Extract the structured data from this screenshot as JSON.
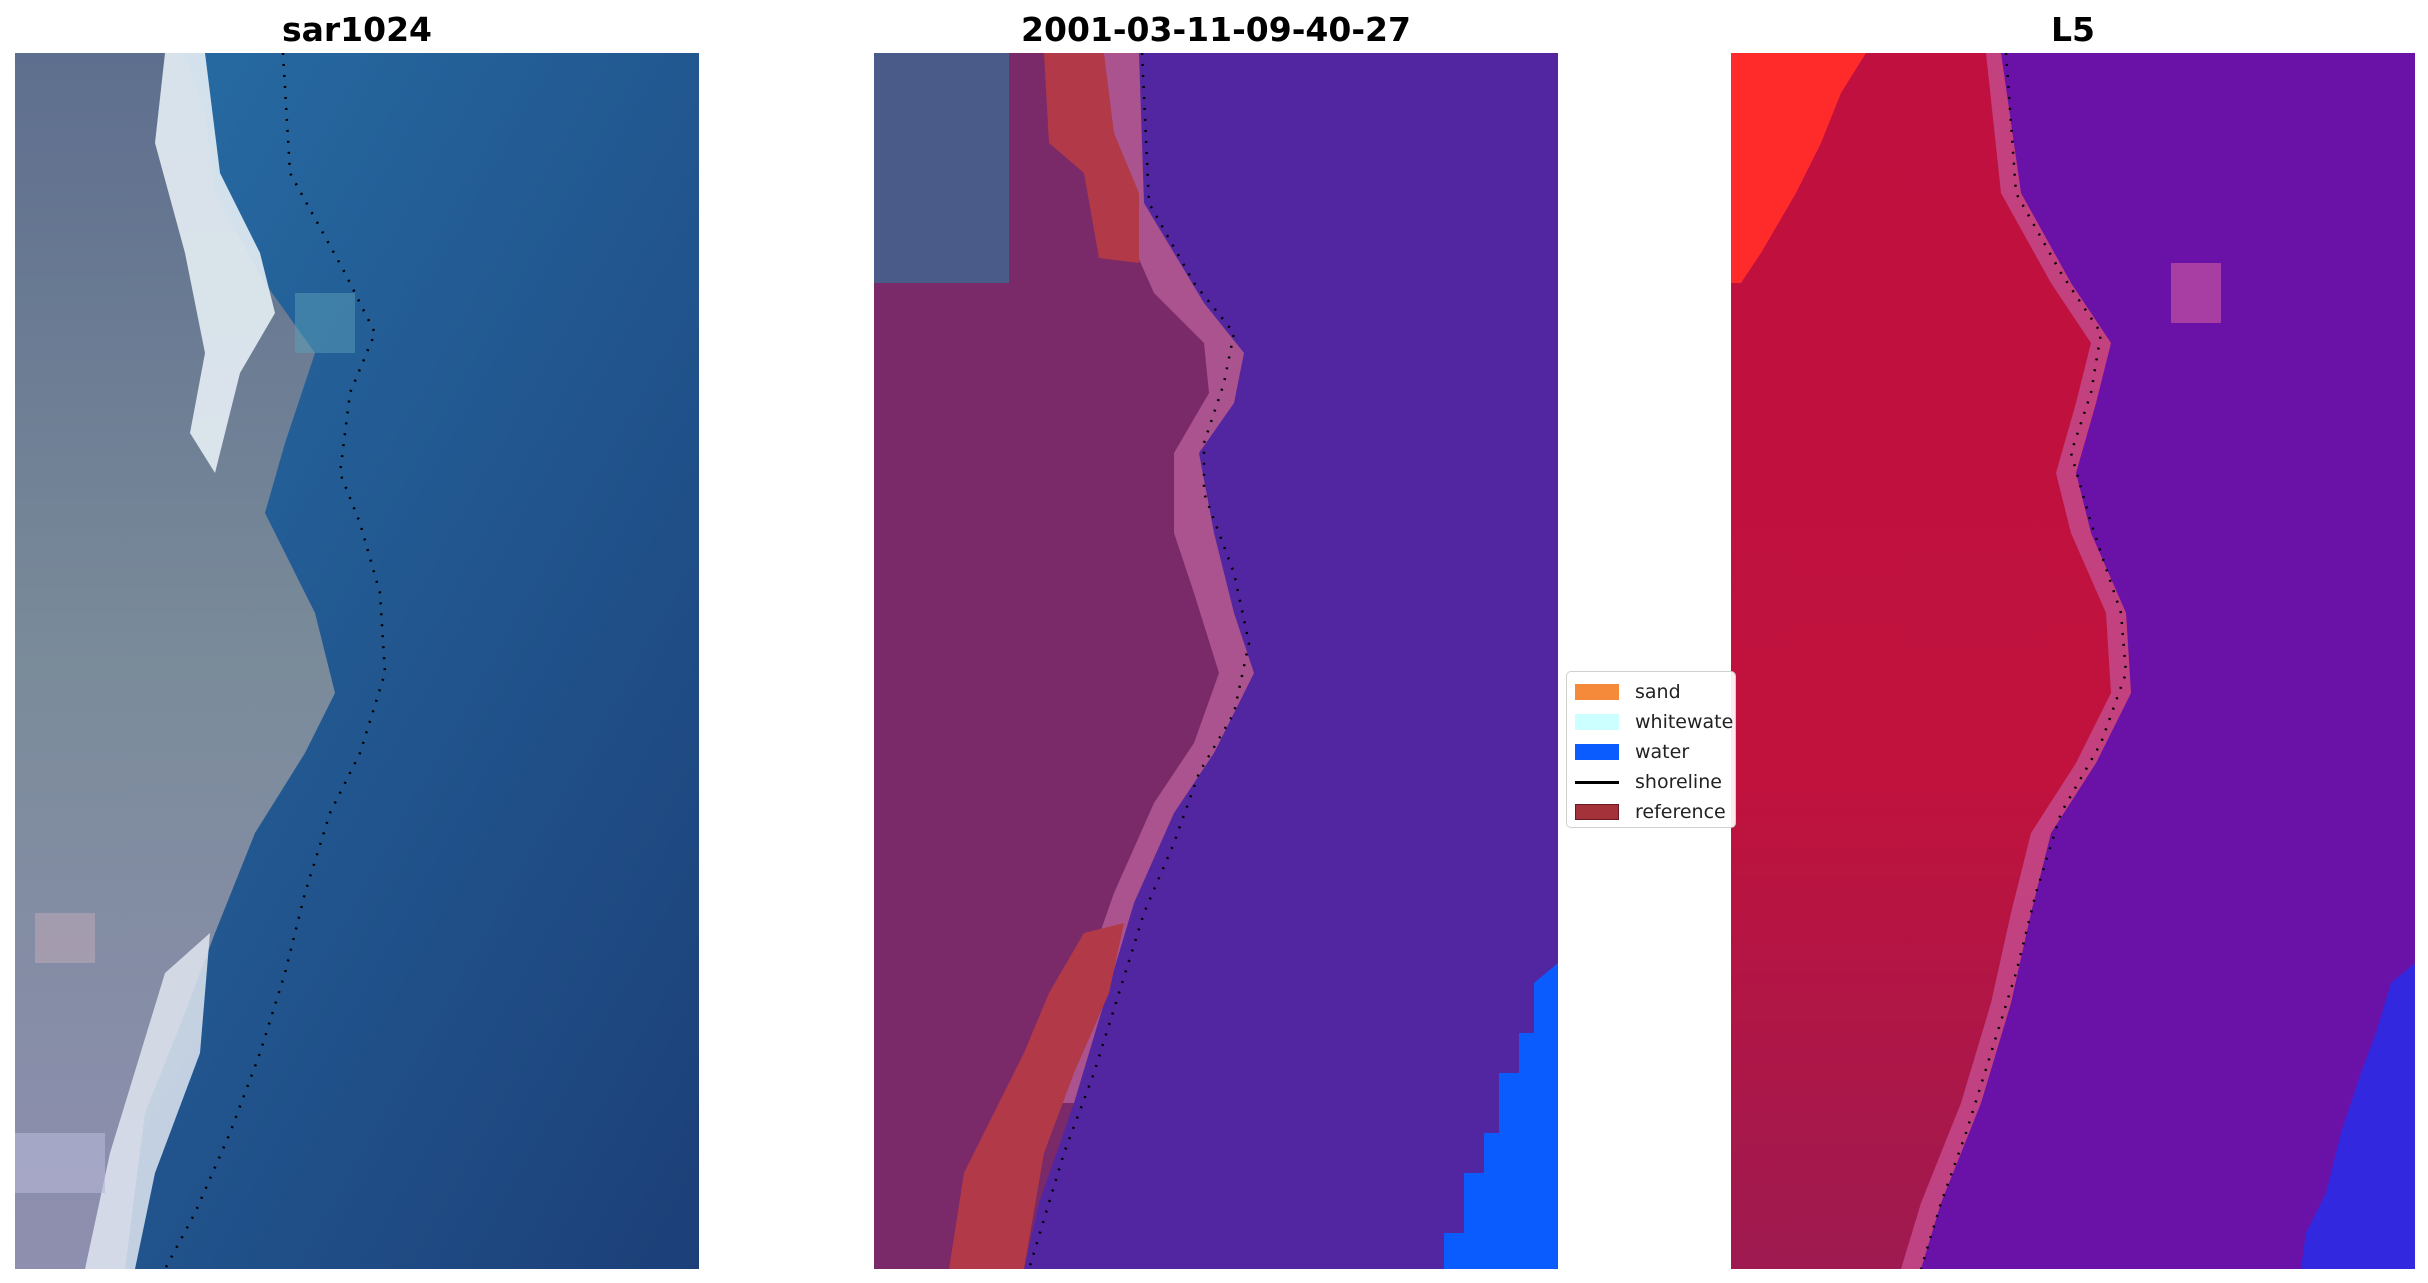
{
  "panels": [
    {
      "title": "sar1024"
    },
    {
      "title": "2001-03-11-09-40-27"
    },
    {
      "title": "L5"
    }
  ],
  "legend": {
    "items": [
      {
        "label": "sand",
        "color": "#f58b3a",
        "kind": "patch"
      },
      {
        "label": "whitewater",
        "color": "#ccffff",
        "kind": "patch"
      },
      {
        "label": "water",
        "color": "#0b5cff",
        "kind": "patch"
      },
      {
        "label": "shoreline",
        "color": "#000000",
        "kind": "line"
      },
      {
        "label": "reference",
        "color": "#a3323b",
        "kind": "patch"
      }
    ]
  },
  "colors": {
    "rgb_water": "#1f5a94",
    "rgb_sand": "#e8f0f4",
    "rgb_land": "#6f7f93",
    "classified_water": "#5226a0",
    "classified_land": "#7a2a68",
    "classified_water_class": "#0b5cff",
    "index_land": "#c1123d",
    "index_water": "#6a12a8",
    "index_bright": "#ff2a2a"
  }
}
